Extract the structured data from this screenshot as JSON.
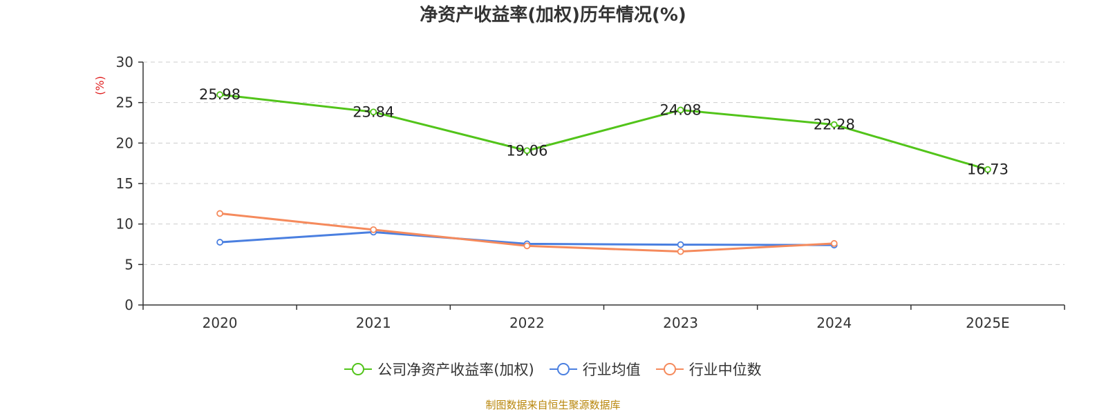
{
  "chart_data": {
    "type": "line",
    "title": "净资产收益率(加权)历年情况(%)",
    "ylabel": "(%)",
    "xlabel": "",
    "categories": [
      "2020",
      "2021",
      "2022",
      "2023",
      "2024",
      "2025E"
    ],
    "ylim": [
      0,
      30
    ],
    "yticks": [
      0,
      5,
      10,
      15,
      20,
      25,
      30
    ],
    "grid": "horizontal-dashed",
    "legend_position": "bottom-center",
    "series": [
      {
        "name": "公司净资产收益率(加权)",
        "color": "#52c41a",
        "values": [
          25.98,
          23.84,
          19.06,
          24.08,
          22.28,
          16.73
        ],
        "labels": [
          "25.98",
          "23.84",
          "19.06",
          "24.08",
          "22.28",
          "16.73"
        ]
      },
      {
        "name": "行业均值",
        "color": "#4a7fe0",
        "values": [
          7.75,
          9.0,
          7.55,
          7.45,
          7.4,
          null
        ]
      },
      {
        "name": "行业中位数",
        "color": "#f58a5c",
        "values": [
          11.3,
          9.3,
          7.3,
          6.6,
          7.6,
          null
        ]
      }
    ]
  },
  "source": "制图数据来自恒生聚源数据库"
}
